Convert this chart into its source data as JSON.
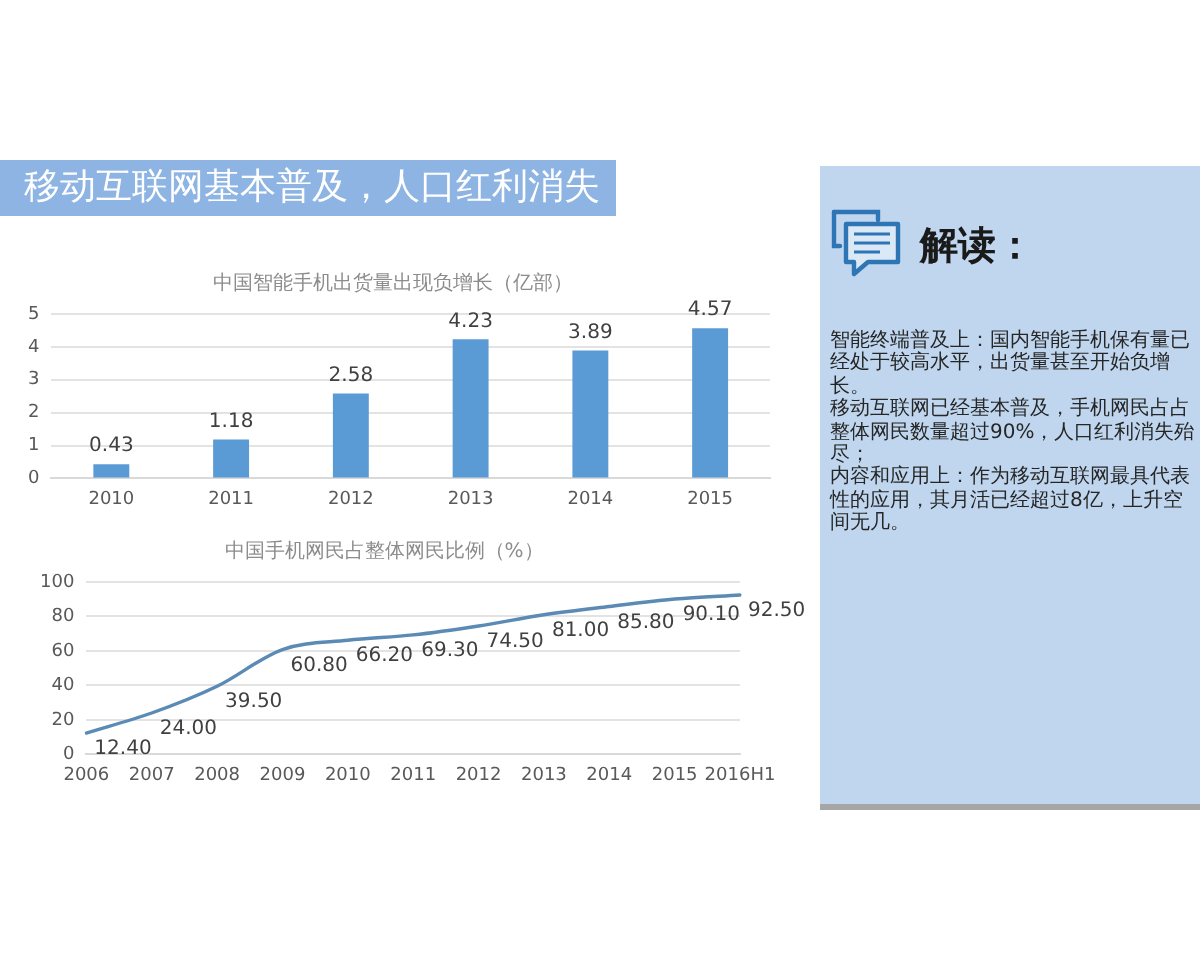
{
  "chart_data": [
    {
      "type": "other",
      "title": "移动互联网基本普及，人口红利消失"
    },
    {
      "type": "bar",
      "title": "中国智能手机出货量出现负增长（亿部）",
      "categories": [
        "2010",
        "2011",
        "2012",
        "2013",
        "2014",
        "2015"
      ],
      "values": [
        0.43,
        1.18,
        2.58,
        4.23,
        3.89,
        4.57
      ],
      "color": "#5b9bd5",
      "ylim": [
        0,
        5
      ],
      "yticks": [
        0,
        1,
        2,
        3,
        4,
        5
      ],
      "grid": "y",
      "data_labels": true
    },
    {
      "type": "line",
      "title": "中国手机网民占整体网民比例（%）",
      "categories": [
        "2006",
        "2007",
        "2008",
        "2009",
        "2010",
        "2011",
        "2012",
        "2013",
        "2014",
        "2015",
        "2016H1"
      ],
      "values": [
        12.4,
        24,
        39.5,
        60.8,
        66.2,
        69.3,
        74.5,
        81,
        85.8,
        90.1,
        92.5
      ],
      "value_labels": [
        "12.40",
        "24.00",
        "39.50",
        "60.80",
        "66.20",
        "69.30",
        "74.50",
        "81.00",
        "85.80",
        "90.10",
        "92.50"
      ],
      "color": "#5b8ab5",
      "ylim": [
        0,
        100
      ],
      "yticks": [
        0,
        20,
        40,
        60,
        80,
        100
      ],
      "grid": "y",
      "marker": "none"
    },
    {
      "type": "other",
      "title": "解读：",
      "annotations": [
        "智能终端普及上：国内智能手机保有量已经处于较高水平，出货量甚至开始负增长。",
        "移动互联网已经基本普及，手机网民占占整体网民数量超过90%，人口红利消失殆尽；",
        "内容和应用上：作为移动互联网最具代表性的应用，其月活已经超过8亿，上升空间无几。"
      ]
    }
  ]
}
